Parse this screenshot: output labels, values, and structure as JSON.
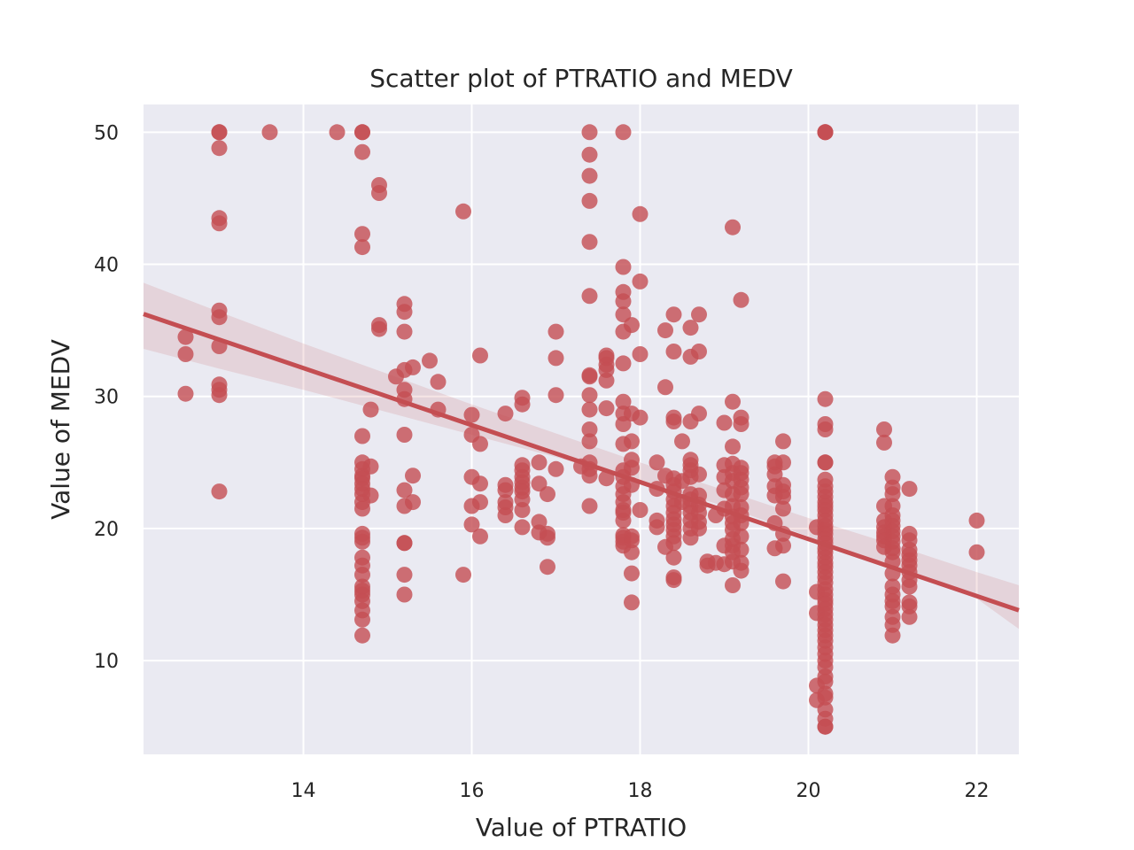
{
  "chart_data": {
    "type": "scatter",
    "title": "Scatter plot of PTRATIO and MEDV",
    "xlabel": "Value of PTRATIO",
    "ylabel": "Value of MEDV",
    "xlim": [
      12.1,
      22.5
    ],
    "ylim": [
      2.9,
      52.1
    ],
    "xticks": [
      14,
      16,
      18,
      20,
      22
    ],
    "yticks": [
      10,
      20,
      30,
      40,
      50
    ],
    "grid": true,
    "legend": "none",
    "colors": {
      "background": "#eaeaf2",
      "grid": "#ffffff",
      "points": "#c44e52",
      "regression_line": "#c44e52",
      "confidence_band": "#c44e52"
    },
    "regression": {
      "slope": -2.157,
      "intercept": 62.34
    },
    "confidence_band": {
      "x": [
        12.1,
        13,
        14,
        15,
        16,
        17,
        18,
        19,
        20,
        21,
        22,
        22.5
      ],
      "upper": [
        38.6,
        36.4,
        34.0,
        31.7,
        29.4,
        27.2,
        25.0,
        22.9,
        20.8,
        18.8,
        16.7,
        15.7
      ],
      "lower": [
        33.6,
        32.1,
        30.5,
        28.8,
        27.1,
        25.4,
        23.6,
        21.7,
        19.4,
        17.1,
        14.7,
        12.4
      ]
    },
    "points": [
      [
        12.6,
        34.5
      ],
      [
        12.6,
        33.2
      ],
      [
        12.6,
        30.2
      ],
      [
        13.0,
        50
      ],
      [
        13.0,
        50
      ],
      [
        13.0,
        48.8
      ],
      [
        13.0,
        43.5
      ],
      [
        13.0,
        43.1
      ],
      [
        13.0,
        36.5
      ],
      [
        13.0,
        36.0
      ],
      [
        13.0,
        33.8
      ],
      [
        13.0,
        30.9
      ],
      [
        13.0,
        30.5
      ],
      [
        13.0,
        30.1
      ],
      [
        13.0,
        22.8
      ],
      [
        13.6,
        50
      ],
      [
        14.4,
        50
      ],
      [
        14.7,
        50
      ],
      [
        14.7,
        50
      ],
      [
        14.7,
        48.5
      ],
      [
        14.7,
        42.3
      ],
      [
        14.7,
        41.3
      ],
      [
        14.7,
        27.0
      ],
      [
        14.7,
        25.0
      ],
      [
        14.7,
        24.5
      ],
      [
        14.7,
        24.0
      ],
      [
        14.7,
        23.8
      ],
      [
        14.7,
        23.4
      ],
      [
        14.7,
        23.0
      ],
      [
        14.7,
        22.6
      ],
      [
        14.7,
        22.0
      ],
      [
        14.7,
        21.5
      ],
      [
        14.7,
        19.6
      ],
      [
        14.7,
        19.3
      ],
      [
        14.7,
        19.0
      ],
      [
        14.7,
        17.8
      ],
      [
        14.7,
        17.2
      ],
      [
        14.7,
        16.5
      ],
      [
        14.7,
        15.6
      ],
      [
        14.7,
        15.3
      ],
      [
        14.7,
        15.0
      ],
      [
        14.7,
        14.5
      ],
      [
        14.7,
        13.8
      ],
      [
        14.7,
        13.1
      ],
      [
        14.7,
        11.9
      ],
      [
        14.8,
        29.0
      ],
      [
        14.8,
        24.7
      ],
      [
        14.8,
        22.5
      ],
      [
        14.9,
        46.0
      ],
      [
        14.9,
        45.4
      ],
      [
        14.9,
        35.4
      ],
      [
        14.9,
        35.1
      ],
      [
        15.1,
        31.5
      ],
      [
        15.2,
        37.0
      ],
      [
        15.2,
        36.4
      ],
      [
        15.2,
        34.9
      ],
      [
        15.2,
        32.0
      ],
      [
        15.2,
        30.5
      ],
      [
        15.2,
        29.8
      ],
      [
        15.2,
        27.1
      ],
      [
        15.2,
        22.9
      ],
      [
        15.2,
        21.7
      ],
      [
        15.2,
        18.9
      ],
      [
        15.2,
        18.9
      ],
      [
        15.2,
        16.5
      ],
      [
        15.2,
        15.0
      ],
      [
        15.3,
        32.2
      ],
      [
        15.3,
        24.0
      ],
      [
        15.3,
        22.0
      ],
      [
        15.5,
        32.7
      ],
      [
        15.6,
        31.1
      ],
      [
        15.6,
        29.0
      ],
      [
        15.9,
        44.0
      ],
      [
        15.9,
        16.5
      ],
      [
        16.0,
        28.6
      ],
      [
        16.0,
        27.1
      ],
      [
        16.0,
        23.9
      ],
      [
        16.0,
        21.7
      ],
      [
        16.0,
        20.3
      ],
      [
        16.1,
        33.1
      ],
      [
        16.1,
        26.4
      ],
      [
        16.1,
        23.4
      ],
      [
        16.1,
        22.0
      ],
      [
        16.1,
        19.4
      ],
      [
        16.4,
        28.7
      ],
      [
        16.4,
        23.3
      ],
      [
        16.4,
        22.9
      ],
      [
        16.4,
        22.0
      ],
      [
        16.4,
        21.6
      ],
      [
        16.4,
        21.0
      ],
      [
        16.6,
        29.9
      ],
      [
        16.6,
        29.4
      ],
      [
        16.6,
        24.8
      ],
      [
        16.6,
        24.4
      ],
      [
        16.6,
        23.9
      ],
      [
        16.6,
        23.5
      ],
      [
        16.6,
        23.1
      ],
      [
        16.6,
        22.8
      ],
      [
        16.6,
        22.2
      ],
      [
        16.6,
        21.4
      ],
      [
        16.6,
        20.1
      ],
      [
        16.8,
        25.0
      ],
      [
        16.8,
        23.4
      ],
      [
        16.8,
        20.5
      ],
      [
        16.8,
        19.7
      ],
      [
        16.9,
        22.6
      ],
      [
        16.9,
        19.6
      ],
      [
        16.9,
        19.3
      ],
      [
        16.9,
        17.1
      ],
      [
        17.0,
        34.9
      ],
      [
        17.0,
        32.9
      ],
      [
        17.0,
        30.1
      ],
      [
        17.0,
        24.5
      ],
      [
        17.3,
        24.7
      ],
      [
        17.4,
        50
      ],
      [
        17.4,
        48.3
      ],
      [
        17.4,
        46.7
      ],
      [
        17.4,
        44.8
      ],
      [
        17.4,
        41.7
      ],
      [
        17.4,
        37.6
      ],
      [
        17.4,
        31.6
      ],
      [
        17.4,
        31.5
      ],
      [
        17.4,
        30.1
      ],
      [
        17.4,
        29.0
      ],
      [
        17.4,
        27.5
      ],
      [
        17.4,
        26.6
      ],
      [
        17.4,
        25.0
      ],
      [
        17.4,
        24.5
      ],
      [
        17.4,
        24.0
      ],
      [
        17.4,
        21.7
      ],
      [
        17.6,
        33.1
      ],
      [
        17.6,
        32.9
      ],
      [
        17.6,
        32.4
      ],
      [
        17.6,
        32.0
      ],
      [
        17.6,
        31.2
      ],
      [
        17.6,
        29.1
      ],
      [
        17.6,
        23.8
      ],
      [
        17.8,
        50
      ],
      [
        17.8,
        39.8
      ],
      [
        17.8,
        37.9
      ],
      [
        17.8,
        37.2
      ],
      [
        17.8,
        36.2
      ],
      [
        17.8,
        34.9
      ],
      [
        17.8,
        32.5
      ],
      [
        17.8,
        29.6
      ],
      [
        17.8,
        28.7
      ],
      [
        17.8,
        27.9
      ],
      [
        17.8,
        26.4
      ],
      [
        17.8,
        24.4
      ],
      [
        17.8,
        23.9
      ],
      [
        17.8,
        23.2
      ],
      [
        17.8,
        22.6
      ],
      [
        17.8,
        22.0
      ],
      [
        17.8,
        21.4
      ],
      [
        17.8,
        21.2
      ],
      [
        17.8,
        20.6
      ],
      [
        17.8,
        19.5
      ],
      [
        17.8,
        19.3
      ],
      [
        17.8,
        19.0
      ],
      [
        17.8,
        18.7
      ],
      [
        17.9,
        35.4
      ],
      [
        17.9,
        28.7
      ],
      [
        17.9,
        26.6
      ],
      [
        17.9,
        25.2
      ],
      [
        17.9,
        24.6
      ],
      [
        17.9,
        23.3
      ],
      [
        17.9,
        19.4
      ],
      [
        17.9,
        19.1
      ],
      [
        17.9,
        18.2
      ],
      [
        17.9,
        16.6
      ],
      [
        17.9,
        14.4
      ],
      [
        18.0,
        43.8
      ],
      [
        18.0,
        38.7
      ],
      [
        18.0,
        33.2
      ],
      [
        18.0,
        28.4
      ],
      [
        18.0,
        21.4
      ],
      [
        18.2,
        25.0
      ],
      [
        18.2,
        23.0
      ],
      [
        18.2,
        20.6
      ],
      [
        18.2,
        20.1
      ],
      [
        18.3,
        35.0
      ],
      [
        18.3,
        30.7
      ],
      [
        18.3,
        24.0
      ],
      [
        18.3,
        18.6
      ],
      [
        18.4,
        36.2
      ],
      [
        18.4,
        33.4
      ],
      [
        18.4,
        28.4
      ],
      [
        18.4,
        28.1
      ],
      [
        18.4,
        23.8
      ],
      [
        18.4,
        23.3
      ],
      [
        18.4,
        22.8
      ],
      [
        18.4,
        22.2
      ],
      [
        18.4,
        21.7
      ],
      [
        18.4,
        21.2
      ],
      [
        18.4,
        20.7
      ],
      [
        18.4,
        20.3
      ],
      [
        18.4,
        19.9
      ],
      [
        18.4,
        19.4
      ],
      [
        18.4,
        18.9
      ],
      [
        18.4,
        17.8
      ],
      [
        18.4,
        16.3
      ],
      [
        18.4,
        16.1
      ],
      [
        18.5,
        26.6
      ],
      [
        18.5,
        23.6
      ],
      [
        18.5,
        22.0
      ],
      [
        18.6,
        35.2
      ],
      [
        18.6,
        33.0
      ],
      [
        18.6,
        28.1
      ],
      [
        18.6,
        25.2
      ],
      [
        18.6,
        24.8
      ],
      [
        18.6,
        24.4
      ],
      [
        18.6,
        23.9
      ],
      [
        18.6,
        22.6
      ],
      [
        18.6,
        22.2
      ],
      [
        18.6,
        21.7
      ],
      [
        18.6,
        21.2
      ],
      [
        18.6,
        20.6
      ],
      [
        18.6,
        20.0
      ],
      [
        18.6,
        19.3
      ],
      [
        18.7,
        36.2
      ],
      [
        18.7,
        33.4
      ],
      [
        18.7,
        28.7
      ],
      [
        18.7,
        24.1
      ],
      [
        18.7,
        22.5
      ],
      [
        18.7,
        21.8
      ],
      [
        18.7,
        21.2
      ],
      [
        18.7,
        20.5
      ],
      [
        18.7,
        20.0
      ],
      [
        18.8,
        17.5
      ],
      [
        18.8,
        17.2
      ],
      [
        18.9,
        21.0
      ],
      [
        18.9,
        17.4
      ],
      [
        19.0,
        28.0
      ],
      [
        19.0,
        24.8
      ],
      [
        19.0,
        23.9
      ],
      [
        19.0,
        22.9
      ],
      [
        19.0,
        21.5
      ],
      [
        19.0,
        18.7
      ],
      [
        19.0,
        17.3
      ],
      [
        19.1,
        42.8
      ],
      [
        19.1,
        29.6
      ],
      [
        19.1,
        26.2
      ],
      [
        19.1,
        24.9
      ],
      [
        19.1,
        24.2
      ],
      [
        19.1,
        23.6
      ],
      [
        19.1,
        22.6
      ],
      [
        19.1,
        21.7
      ],
      [
        19.1,
        20.9
      ],
      [
        19.1,
        20.4
      ],
      [
        19.1,
        19.9
      ],
      [
        19.1,
        19.2
      ],
      [
        19.1,
        18.7
      ],
      [
        19.1,
        18.2
      ],
      [
        19.1,
        17.5
      ],
      [
        19.1,
        15.7
      ],
      [
        19.2,
        37.3
      ],
      [
        19.2,
        28.4
      ],
      [
        19.2,
        27.9
      ],
      [
        19.2,
        24.6
      ],
      [
        19.2,
        24.2
      ],
      [
        19.2,
        23.7
      ],
      [
        19.2,
        23.1
      ],
      [
        19.2,
        22.6
      ],
      [
        19.2,
        21.6
      ],
      [
        19.2,
        21.0
      ],
      [
        19.2,
        20.4
      ],
      [
        19.2,
        19.4
      ],
      [
        19.2,
        18.4
      ],
      [
        19.2,
        17.4
      ],
      [
        19.2,
        16.8
      ],
      [
        19.6,
        25.0
      ],
      [
        19.6,
        24.7
      ],
      [
        19.6,
        24.1
      ],
      [
        19.6,
        23.2
      ],
      [
        19.6,
        22.5
      ],
      [
        19.6,
        20.4
      ],
      [
        19.6,
        18.5
      ],
      [
        19.7,
        26.6
      ],
      [
        19.7,
        25.0
      ],
      [
        19.7,
        23.3
      ],
      [
        19.7,
        22.8
      ],
      [
        19.7,
        22.4
      ],
      [
        19.7,
        21.5
      ],
      [
        19.7,
        19.6
      ],
      [
        19.7,
        18.7
      ],
      [
        19.7,
        16.0
      ],
      [
        20.1,
        20.1
      ],
      [
        20.1,
        15.2
      ],
      [
        20.1,
        13.6
      ],
      [
        20.1,
        8.1
      ],
      [
        20.1,
        7.0
      ],
      [
        20.2,
        50
      ],
      [
        20.2,
        50
      ],
      [
        20.2,
        50
      ],
      [
        20.2,
        29.8
      ],
      [
        20.2,
        27.9
      ],
      [
        20.2,
        27.5
      ],
      [
        20.2,
        25.0
      ],
      [
        20.2,
        25.0
      ],
      [
        20.2,
        23.7
      ],
      [
        20.2,
        23.2
      ],
      [
        20.2,
        22.8
      ],
      [
        20.2,
        22.4
      ],
      [
        20.2,
        22.0
      ],
      [
        20.2,
        21.7
      ],
      [
        20.2,
        21.4
      ],
      [
        20.2,
        21.0
      ],
      [
        20.2,
        20.6
      ],
      [
        20.2,
        20.2
      ],
      [
        20.2,
        19.9
      ],
      [
        20.2,
        19.6
      ],
      [
        20.2,
        19.2
      ],
      [
        20.2,
        18.9
      ],
      [
        20.2,
        18.5
      ],
      [
        20.2,
        18.2
      ],
      [
        20.2,
        17.8
      ],
      [
        20.2,
        17.4
      ],
      [
        20.2,
        17.1
      ],
      [
        20.2,
        16.7
      ],
      [
        20.2,
        16.3
      ],
      [
        20.2,
        15.9
      ],
      [
        20.2,
        15.4
      ],
      [
        20.2,
        15.0
      ],
      [
        20.2,
        14.6
      ],
      [
        20.2,
        14.3
      ],
      [
        20.2,
        13.9
      ],
      [
        20.2,
        13.5
      ],
      [
        20.2,
        13.1
      ],
      [
        20.2,
        12.7
      ],
      [
        20.2,
        12.3
      ],
      [
        20.2,
        11.9
      ],
      [
        20.2,
        11.5
      ],
      [
        20.2,
        11.0
      ],
      [
        20.2,
        10.5
      ],
      [
        20.2,
        10.0
      ],
      [
        20.2,
        9.5
      ],
      [
        20.2,
        8.8
      ],
      [
        20.2,
        8.4
      ],
      [
        20.2,
        7.5
      ],
      [
        20.2,
        7.2
      ],
      [
        20.2,
        6.3
      ],
      [
        20.2,
        5.6
      ],
      [
        20.2,
        5.0
      ],
      [
        20.2,
        5.0
      ],
      [
        20.9,
        27.5
      ],
      [
        20.9,
        26.5
      ],
      [
        20.9,
        21.7
      ],
      [
        20.9,
        20.6
      ],
      [
        20.9,
        20.1
      ],
      [
        20.9,
        19.7
      ],
      [
        20.9,
        19.4
      ],
      [
        20.9,
        19.1
      ],
      [
        20.9,
        18.6
      ],
      [
        21.0,
        23.9
      ],
      [
        21.0,
        23.1
      ],
      [
        21.0,
        22.6
      ],
      [
        21.0,
        21.7
      ],
      [
        21.0,
        21.0
      ],
      [
        21.0,
        20.6
      ],
      [
        21.0,
        20.2
      ],
      [
        21.0,
        19.8
      ],
      [
        21.0,
        19.4
      ],
      [
        21.0,
        19.0
      ],
      [
        21.0,
        18.5
      ],
      [
        21.0,
        18.2
      ],
      [
        21.0,
        17.5
      ],
      [
        21.0,
        16.6
      ],
      [
        21.0,
        15.6
      ],
      [
        21.0,
        15.0
      ],
      [
        21.0,
        14.5
      ],
      [
        21.0,
        14.1
      ],
      [
        21.0,
        13.3
      ],
      [
        21.0,
        12.7
      ],
      [
        21.0,
        11.9
      ],
      [
        21.2,
        23.0
      ],
      [
        21.2,
        19.6
      ],
      [
        21.2,
        19.1
      ],
      [
        21.2,
        18.4
      ],
      [
        21.2,
        18.0
      ],
      [
        21.2,
        17.6
      ],
      [
        21.2,
        17.2
      ],
      [
        21.2,
        16.7
      ],
      [
        21.2,
        16.1
      ],
      [
        21.2,
        15.6
      ],
      [
        21.2,
        14.4
      ],
      [
        21.2,
        14.1
      ],
      [
        21.2,
        13.3
      ],
      [
        22.0,
        20.6
      ],
      [
        22.0,
        18.2
      ]
    ]
  }
}
